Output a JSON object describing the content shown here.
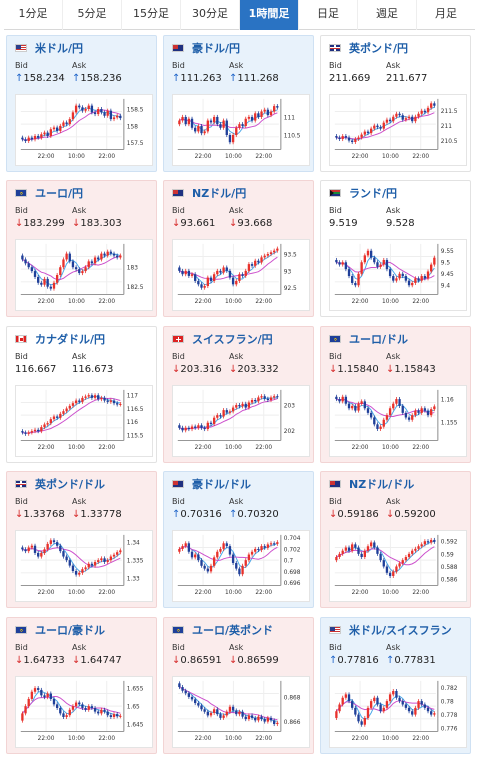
{
  "tabs": [
    {
      "label": "1分足",
      "active": false
    },
    {
      "label": "5分足",
      "active": false
    },
    {
      "label": "15分足",
      "active": false
    },
    {
      "label": "30分足",
      "active": false
    },
    {
      "label": "1時間足",
      "active": true
    },
    {
      "label": "日足",
      "active": false
    },
    {
      "label": "週足",
      "active": false
    },
    {
      "label": "月足",
      "active": false
    }
  ],
  "labels": {
    "bid": "Bid",
    "ask": "Ask",
    "xtick1": "22:00",
    "xtick2": "10:00",
    "xtick3": "22:00"
  },
  "colors": {
    "up_arrow": "#1d63c8",
    "down_arrow": "#d62b2b",
    "candle_up": "#e8312b",
    "candle_down": "#1f3f99",
    "ma_short": "#4aa8e8",
    "ma_long": "#cc4fcc"
  },
  "pairs": [
    {
      "name": "米ドル/円",
      "flag": "us-flag-icon",
      "trend": "up",
      "bid": "158.234",
      "ask": "158.236",
      "yticks": [
        "158.5",
        "158",
        "157.5"
      ],
      "ylim": [
        157.3,
        158.8
      ],
      "path": [
        157.6,
        157.55,
        157.65,
        157.6,
        157.7,
        157.65,
        157.75,
        157.8,
        157.7,
        157.9,
        157.95,
        157.85,
        158.0,
        158.1,
        158.05,
        158.2,
        158.4,
        158.6,
        158.55,
        158.45,
        158.5,
        158.6,
        158.4,
        158.35,
        158.5,
        158.4,
        158.3,
        158.45,
        158.2,
        158.25,
        158.3,
        158.23
      ]
    },
    {
      "name": "豪ドル/円",
      "flag": "au-flag-icon",
      "trend": "up",
      "bid": "111.263",
      "ask": "111.268",
      "yticks": [
        "111",
        "110.5"
      ],
      "ylim": [
        110.1,
        111.5
      ],
      "path": [
        110.9,
        111.0,
        110.8,
        110.95,
        110.7,
        110.6,
        110.75,
        110.55,
        110.6,
        110.9,
        110.85,
        111.0,
        110.8,
        110.7,
        110.9,
        110.5,
        110.3,
        110.5,
        110.7,
        110.8,
        110.75,
        110.95,
        111.0,
        110.9,
        111.1,
        111.0,
        111.15,
        111.2,
        111.05,
        111.15,
        111.3,
        111.26
      ]
    },
    {
      "name": "英ポンド/円",
      "flag": "gb-flag-icon",
      "trend": "flat",
      "bid": "211.669",
      "ask": "211.677",
      "yticks": [
        "211.5",
        "211",
        "210.5"
      ],
      "ylim": [
        210.2,
        211.9
      ],
      "path": [
        210.6,
        210.55,
        210.65,
        210.6,
        210.5,
        210.45,
        210.55,
        210.6,
        210.7,
        210.8,
        210.75,
        210.9,
        211.0,
        210.95,
        210.9,
        211.1,
        211.2,
        211.15,
        211.3,
        211.4,
        211.35,
        211.2,
        211.25,
        211.3,
        211.15,
        211.3,
        211.4,
        211.5,
        211.45,
        211.6,
        211.75,
        211.67
      ]
    },
    {
      "name": "ユーロ/円",
      "flag": "eu-flag-icon",
      "trend": "down",
      "bid": "183.299",
      "ask": "183.303",
      "yticks": [
        "183",
        "182.5"
      ],
      "ylim": [
        182.3,
        183.6
      ],
      "path": [
        183.2,
        183.1,
        183.0,
        182.9,
        182.75,
        182.6,
        182.55,
        182.7,
        182.5,
        182.45,
        182.6,
        182.8,
        183.0,
        183.2,
        183.35,
        183.15,
        183.0,
        182.95,
        182.85,
        182.9,
        183.0,
        183.15,
        183.1,
        183.25,
        183.2,
        183.35,
        183.3,
        183.4,
        183.35,
        183.3,
        183.25,
        183.3
      ]
    },
    {
      "name": "NZドル/円",
      "flag": "nz-flag-icon",
      "trend": "down",
      "bid": "93.661",
      "ask": "93.668",
      "yticks": [
        "93.5",
        "93",
        "92.5"
      ],
      "ylim": [
        92.3,
        93.8
      ],
      "path": [
        93.0,
        92.9,
        93.0,
        92.85,
        92.9,
        92.7,
        92.6,
        92.5,
        92.55,
        92.8,
        92.7,
        92.9,
        93.0,
        92.95,
        93.1,
        93.0,
        92.8,
        92.6,
        92.7,
        92.9,
        92.85,
        93.0,
        93.2,
        93.15,
        93.3,
        93.25,
        93.4,
        93.45,
        93.5,
        93.55,
        93.6,
        93.66
      ]
    },
    {
      "name": "ランド/円",
      "flag": "za-flag-icon",
      "trend": "flat",
      "bid": "9.519",
      "ask": "9.528",
      "yticks": [
        "9.55",
        "9.5",
        "9.45",
        "9.4"
      ],
      "ylim": [
        9.36,
        9.58
      ],
      "path": [
        9.5,
        9.49,
        9.5,
        9.47,
        9.44,
        9.41,
        9.4,
        9.45,
        9.5,
        9.53,
        9.55,
        9.52,
        9.5,
        9.48,
        9.49,
        9.51,
        9.47,
        9.44,
        9.42,
        9.43,
        9.45,
        9.44,
        9.42,
        9.4,
        9.41,
        9.43,
        9.42,
        9.44,
        9.43,
        9.46,
        9.49,
        9.52
      ]
    },
    {
      "name": "カナダドル/円",
      "flag": "ca-flag-icon",
      "trend": "flat",
      "bid": "116.667",
      "ask": "116.673",
      "yticks": [
        "117",
        "116.5",
        "116",
        "115.5"
      ],
      "ylim": [
        115.3,
        117.2
      ],
      "path": [
        115.6,
        115.55,
        115.6,
        115.65,
        115.7,
        115.65,
        115.8,
        115.9,
        115.95,
        116.1,
        116.2,
        116.15,
        116.3,
        116.4,
        116.5,
        116.6,
        116.7,
        116.8,
        116.75,
        116.9,
        116.95,
        117.0,
        116.9,
        117.0,
        116.85,
        116.9,
        116.8,
        116.75,
        116.8,
        116.7,
        116.65,
        116.67
      ]
    },
    {
      "name": "スイスフラン/円",
      "flag": "ch-flag-icon",
      "trend": "down",
      "bid": "203.316",
      "ask": "203.332",
      "yticks": [
        "203",
        "202"
      ],
      "ylim": [
        201.6,
        203.6
      ],
      "path": [
        202.1,
        202.0,
        202.1,
        202.05,
        202.15,
        202.1,
        202.2,
        202.1,
        202.05,
        202.3,
        202.25,
        202.5,
        202.6,
        202.55,
        202.8,
        202.7,
        202.75,
        202.9,
        203.0,
        202.95,
        203.05,
        202.9,
        203.1,
        203.2,
        203.15,
        203.3,
        203.35,
        203.25,
        203.2,
        203.3,
        203.35,
        203.32
      ]
    },
    {
      "name": "ユーロ/ドル",
      "flag": "eu-flag-icon",
      "trend": "down",
      "bid": "1.15840",
      "ask": "1.15843",
      "yticks": [
        "1.16",
        "1.155"
      ],
      "ylim": [
        1.151,
        1.162
      ],
      "path": [
        1.16,
        1.1595,
        1.1605,
        1.159,
        1.158,
        1.1585,
        1.1575,
        1.159,
        1.1595,
        1.158,
        1.157,
        1.156,
        1.1545,
        1.1535,
        1.154,
        1.1555,
        1.1565,
        1.158,
        1.159,
        1.16,
        1.1585,
        1.157,
        1.156,
        1.1555,
        1.1565,
        1.1575,
        1.157,
        1.158,
        1.1575,
        1.1565,
        1.1578,
        1.1584
      ]
    },
    {
      "name": "英ポンド/ドル",
      "flag": "gb-flag-icon",
      "trend": "down",
      "bid": "1.33768",
      "ask": "1.33778",
      "yticks": [
        "1.34",
        "1.335",
        "1.33"
      ],
      "ylim": [
        1.328,
        1.342
      ],
      "path": [
        1.338,
        1.3375,
        1.3385,
        1.339,
        1.337,
        1.336,
        1.337,
        1.338,
        1.3395,
        1.3405,
        1.34,
        1.339,
        1.3375,
        1.336,
        1.335,
        1.3335,
        1.332,
        1.331,
        1.3315,
        1.3325,
        1.333,
        1.334,
        1.3335,
        1.3345,
        1.335,
        1.3355,
        1.3345,
        1.335,
        1.336,
        1.3365,
        1.3372,
        1.3377
      ]
    },
    {
      "name": "豪ドル/ドル",
      "flag": "au-flag-icon",
      "trend": "up",
      "bid": "0.70316",
      "ask": "0.70320",
      "yticks": [
        "0.704",
        "0.702",
        "0.7",
        "0.698",
        "0.696"
      ],
      "ylim": [
        0.6955,
        0.7045
      ],
      "path": [
        0.702,
        0.7025,
        0.703,
        0.7015,
        0.7005,
        0.701,
        0.7,
        0.699,
        0.6985,
        0.698,
        0.699,
        0.7005,
        0.7015,
        0.702,
        0.703,
        0.7025,
        0.701,
        0.6995,
        0.6985,
        0.6975,
        0.699,
        0.7,
        0.701,
        0.7015,
        0.702,
        0.7018,
        0.7025,
        0.7022,
        0.7028,
        0.703,
        0.7029,
        0.7032
      ]
    },
    {
      "name": "NZドル/ドル",
      "flag": "nz-flag-icon",
      "trend": "down",
      "bid": "0.59186",
      "ask": "0.59200",
      "yticks": [
        "0.592",
        "0.59",
        "0.588",
        "0.586"
      ],
      "ylim": [
        0.585,
        0.593
      ],
      "path": [
        0.5895,
        0.59,
        0.5905,
        0.591,
        0.5905,
        0.5915,
        0.591,
        0.59,
        0.5895,
        0.5905,
        0.5912,
        0.5918,
        0.591,
        0.59,
        0.589,
        0.588,
        0.587,
        0.5865,
        0.5872,
        0.588,
        0.5885,
        0.589,
        0.5895,
        0.59,
        0.5905,
        0.5908,
        0.5912,
        0.5915,
        0.592,
        0.5918,
        0.5922,
        0.5919
      ]
    },
    {
      "name": "ユーロ/豪ドル",
      "flag": "eu-flag-icon",
      "trend": "down",
      "bid": "1.64733",
      "ask": "1.64747",
      "yticks": [
        "1.655",
        "1.65",
        "1.645"
      ],
      "ylim": [
        1.643,
        1.657
      ],
      "path": [
        1.648,
        1.65,
        1.652,
        1.654,
        1.655,
        1.6545,
        1.653,
        1.6525,
        1.6535,
        1.652,
        1.6505,
        1.6495,
        1.648,
        1.647,
        1.6475,
        1.649,
        1.65,
        1.651,
        1.6505,
        1.6495,
        1.649,
        1.65,
        1.6495,
        1.6485,
        1.648,
        1.649,
        1.6485,
        1.6475,
        1.647,
        1.6478,
        1.6472,
        1.6473
      ]
    },
    {
      "name": "ユーロ/英ポンド",
      "flag": "eu-flag-icon",
      "trend": "down",
      "bid": "0.86591",
      "ask": "0.86599",
      "yticks": [
        "0.868",
        "0.866"
      ],
      "ylim": [
        0.8652,
        0.8693
      ],
      "path": [
        0.8688,
        0.8685,
        0.8683,
        0.868,
        0.8678,
        0.8675,
        0.8673,
        0.867,
        0.8668,
        0.8665,
        0.8667,
        0.867,
        0.8666,
        0.8663,
        0.8665,
        0.8668,
        0.8672,
        0.8669,
        0.8666,
        0.8668,
        0.8664,
        0.8662,
        0.8665,
        0.8663,
        0.8661,
        0.8664,
        0.8662,
        0.866,
        0.8663,
        0.8661,
        0.8658,
        0.8659
      ]
    },
    {
      "name": "米ドル/スイスフラン",
      "flag": "us-flag-icon",
      "trend": "up",
      "bid": "0.77816",
      "ask": "0.77831",
      "yticks": [
        "0.782",
        "0.78",
        "0.778",
        "0.776"
      ],
      "ylim": [
        0.7755,
        0.783
      ],
      "path": [
        0.7785,
        0.7795,
        0.7805,
        0.781,
        0.78,
        0.779,
        0.778,
        0.777,
        0.7765,
        0.7775,
        0.779,
        0.78,
        0.7805,
        0.7795,
        0.7785,
        0.779,
        0.78,
        0.781,
        0.7815,
        0.7805,
        0.78,
        0.7795,
        0.779,
        0.7785,
        0.778,
        0.779,
        0.78,
        0.7795,
        0.779,
        0.7785,
        0.778,
        0.7782
      ]
    }
  ]
}
